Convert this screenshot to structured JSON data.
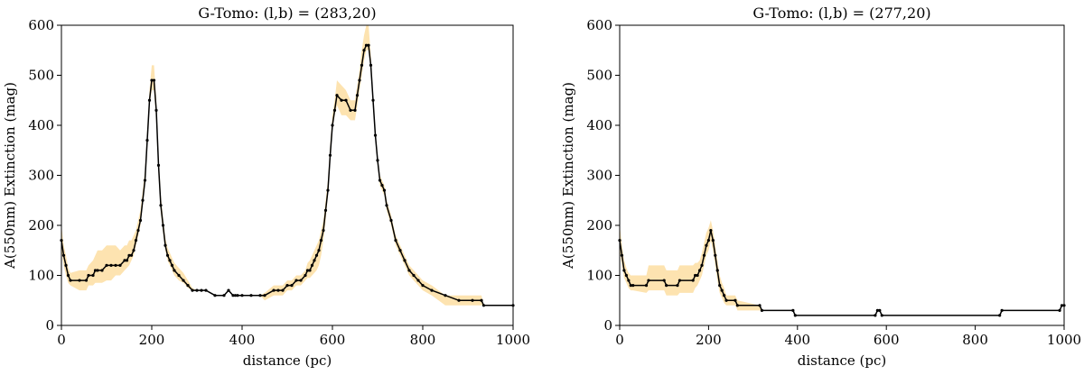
{
  "colors": {
    "line": "#000000",
    "band": "#fde3b0",
    "axis": "#000000"
  },
  "chart_data": [
    {
      "type": "line",
      "title": "G-Tomo: (l,b) = (283,20)",
      "xlabel": "distance (pc)",
      "ylabel": "A(550nm) Extinction (mag)",
      "xlim": [
        0,
        1000
      ],
      "ylim": [
        0,
        600
      ],
      "xticks": [
        "0",
        "200",
        "400",
        "600",
        "800",
        "1000"
      ],
      "yticks": [
        "0",
        "100",
        "200",
        "300",
        "400",
        "500",
        "600"
      ],
      "grid": false,
      "series": [
        {
          "name": "extinction",
          "x": [
            0,
            5,
            10,
            15,
            20,
            40,
            55,
            60,
            70,
            75,
            80,
            90,
            100,
            110,
            120,
            130,
            140,
            145,
            150,
            155,
            160,
            165,
            170,
            175,
            180,
            185,
            190,
            195,
            200,
            205,
            210,
            215,
            220,
            225,
            230,
            235,
            240,
            245,
            250,
            260,
            270,
            280,
            290,
            300,
            310,
            320,
            340,
            360,
            370,
            380,
            385,
            390,
            400,
            420,
            440,
            450,
            470,
            480,
            490,
            500,
            510,
            520,
            530,
            540,
            545,
            550,
            555,
            560,
            565,
            570,
            575,
            580,
            585,
            590,
            595,
            600,
            605,
            610,
            620,
            630,
            640,
            650,
            655,
            660,
            665,
            670,
            675,
            680,
            685,
            690,
            695,
            700,
            705,
            710,
            715,
            720,
            730,
            740,
            750,
            760,
            770,
            780,
            790,
            800,
            820,
            850,
            880,
            910,
            930,
            935,
            1000
          ],
          "y": [
            170,
            140,
            120,
            100,
            90,
            90,
            90,
            100,
            100,
            110,
            110,
            110,
            120,
            120,
            120,
            120,
            130,
            130,
            140,
            140,
            150,
            170,
            190,
            210,
            250,
            290,
            370,
            450,
            490,
            490,
            430,
            320,
            240,
            200,
            160,
            140,
            130,
            120,
            110,
            100,
            90,
            80,
            70,
            70,
            70,
            70,
            60,
            60,
            70,
            60,
            60,
            60,
            60,
            60,
            60,
            60,
            70,
            70,
            70,
            80,
            80,
            90,
            90,
            100,
            110,
            110,
            120,
            130,
            140,
            150,
            170,
            190,
            230,
            270,
            340,
            400,
            430,
            460,
            450,
            450,
            430,
            430,
            460,
            490,
            520,
            550,
            560,
            560,
            520,
            450,
            380,
            330,
            290,
            280,
            270,
            240,
            210,
            170,
            150,
            130,
            110,
            100,
            90,
            80,
            70,
            60,
            50,
            50,
            50,
            40,
            40
          ],
          "band_lower": [
            150,
            120,
            100,
            85,
            80,
            70,
            70,
            80,
            80,
            85,
            85,
            85,
            90,
            90,
            100,
            100,
            110,
            115,
            120,
            130,
            140,
            160,
            180,
            200,
            240,
            280,
            360,
            440,
            470,
            470,
            410,
            300,
            225,
            185,
            150,
            130,
            120,
            110,
            100,
            90,
            85,
            75,
            70,
            70,
            70,
            70,
            60,
            60,
            70,
            60,
            60,
            60,
            60,
            60,
            60,
            50,
            60,
            60,
            60,
            70,
            70,
            80,
            80,
            90,
            95,
            95,
            100,
            105,
            110,
            120,
            140,
            170,
            210,
            260,
            330,
            390,
            420,
            440,
            420,
            420,
            410,
            410,
            440,
            470,
            500,
            530,
            550,
            550,
            510,
            440,
            370,
            320,
            280,
            270,
            260,
            230,
            200,
            160,
            140,
            120,
            100,
            90,
            80,
            70,
            60,
            40,
            40,
            40,
            40,
            40,
            40
          ],
          "band_upper": [
            200,
            160,
            140,
            115,
            105,
            110,
            110,
            120,
            130,
            140,
            150,
            150,
            160,
            160,
            160,
            150,
            160,
            160,
            170,
            170,
            180,
            190,
            210,
            230,
            270,
            310,
            390,
            470,
            520,
            520,
            450,
            340,
            260,
            215,
            175,
            155,
            145,
            135,
            125,
            115,
            105,
            90,
            75,
            70,
            70,
            70,
            60,
            60,
            70,
            60,
            60,
            60,
            60,
            60,
            60,
            65,
            80,
            80,
            80,
            90,
            90,
            100,
            100,
            110,
            125,
            130,
            140,
            150,
            160,
            170,
            190,
            210,
            250,
            290,
            360,
            420,
            450,
            490,
            480,
            470,
            450,
            450,
            480,
            510,
            550,
            580,
            600,
            600,
            540,
            460,
            390,
            340,
            300,
            290,
            280,
            250,
            220,
            180,
            160,
            140,
            120,
            110,
            100,
            90,
            80,
            60,
            60,
            60,
            60,
            40,
            40
          ]
        }
      ]
    },
    {
      "type": "line",
      "title": "G-Tomo: (l,b) = (277,20)",
      "xlabel": "distance (pc)",
      "ylabel": "A(550nm) Extinction (mag)",
      "xlim": [
        0,
        1000
      ],
      "ylim": [
        0,
        600
      ],
      "xticks": [
        "0",
        "200",
        "400",
        "600",
        "800",
        "1000"
      ],
      "yticks": [
        "0",
        "100",
        "200",
        "300",
        "400",
        "500",
        "600"
      ],
      "grid": false,
      "series": [
        {
          "name": "extinction",
          "x": [
            0,
            5,
            10,
            15,
            20,
            25,
            30,
            60,
            65,
            100,
            105,
            130,
            135,
            165,
            170,
            175,
            180,
            185,
            190,
            195,
            200,
            205,
            210,
            215,
            220,
            225,
            230,
            235,
            240,
            260,
            265,
            315,
            320,
            390,
            395,
            575,
            580,
            585,
            590,
            855,
            860,
            990,
            995,
            1000
          ],
          "y": [
            170,
            140,
            110,
            100,
            90,
            80,
            80,
            80,
            90,
            90,
            80,
            80,
            90,
            90,
            100,
            100,
            110,
            120,
            140,
            160,
            170,
            190,
            170,
            140,
            110,
            80,
            70,
            60,
            50,
            50,
            40,
            40,
            30,
            30,
            20,
            20,
            30,
            30,
            20,
            20,
            30,
            30,
            40,
            40
          ],
          "band_lower": [
            150,
            120,
            95,
            85,
            75,
            70,
            70,
            65,
            70,
            70,
            60,
            60,
            65,
            65,
            75,
            80,
            90,
            100,
            120,
            140,
            150,
            170,
            150,
            120,
            90,
            65,
            55,
            45,
            40,
            40,
            30,
            30,
            30,
            30,
            20,
            20,
            30,
            30,
            20,
            20,
            30,
            30,
            40,
            40
          ],
          "band_upper": [
            200,
            160,
            130,
            115,
            105,
            100,
            100,
            100,
            120,
            120,
            110,
            110,
            120,
            120,
            125,
            125,
            130,
            145,
            165,
            185,
            195,
            210,
            190,
            160,
            130,
            100,
            85,
            75,
            60,
            60,
            50,
            40,
            30,
            30,
            20,
            20,
            30,
            30,
            20,
            20,
            30,
            30,
            40,
            40
          ]
        }
      ]
    }
  ]
}
